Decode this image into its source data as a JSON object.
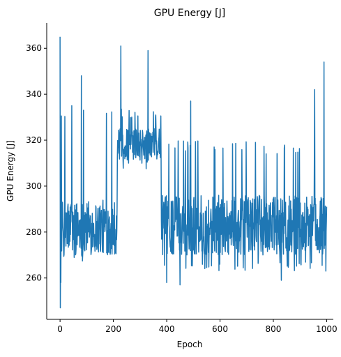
{
  "chart_data": {
    "type": "line",
    "title": "GPU Energy [J]",
    "xlabel": "Epoch",
    "ylabel": "GPU Energy [J]",
    "xlim": [
      -50,
      1025
    ],
    "ylim": [
      242,
      371
    ],
    "xticks": [
      0,
      200,
      400,
      600,
      800,
      1000
    ],
    "yticks": [
      260,
      280,
      300,
      320,
      340,
      360
    ],
    "grid": false,
    "series": [
      {
        "color": "#1f77b4",
        "phases": [
          {
            "start": 0,
            "end": 215,
            "base": 282,
            "spread": 12,
            "spike_up": 335,
            "spike_down": 266
          },
          {
            "start": 215,
            "end": 380,
            "base": 318,
            "spread": 7,
            "spike_up": 334,
            "spike_down": 307
          },
          {
            "start": 380,
            "end": 1000,
            "base": 283,
            "spread": 13,
            "spike_up": 320,
            "spike_down": 263
          }
        ],
        "highlights": [
          {
            "x": 0,
            "y": 365
          },
          {
            "x": 1,
            "y": 247
          },
          {
            "x": 3,
            "y": 258
          },
          {
            "x": 44,
            "y": 335
          },
          {
            "x": 80,
            "y": 348
          },
          {
            "x": 228,
            "y": 361
          },
          {
            "x": 330,
            "y": 359
          },
          {
            "x": 400,
            "y": 258
          },
          {
            "x": 450,
            "y": 257
          },
          {
            "x": 490,
            "y": 337
          },
          {
            "x": 830,
            "y": 259
          },
          {
            "x": 955,
            "y": 342
          },
          {
            "x": 990,
            "y": 354
          },
          {
            "x": 997,
            "y": 263
          }
        ]
      }
    ]
  }
}
